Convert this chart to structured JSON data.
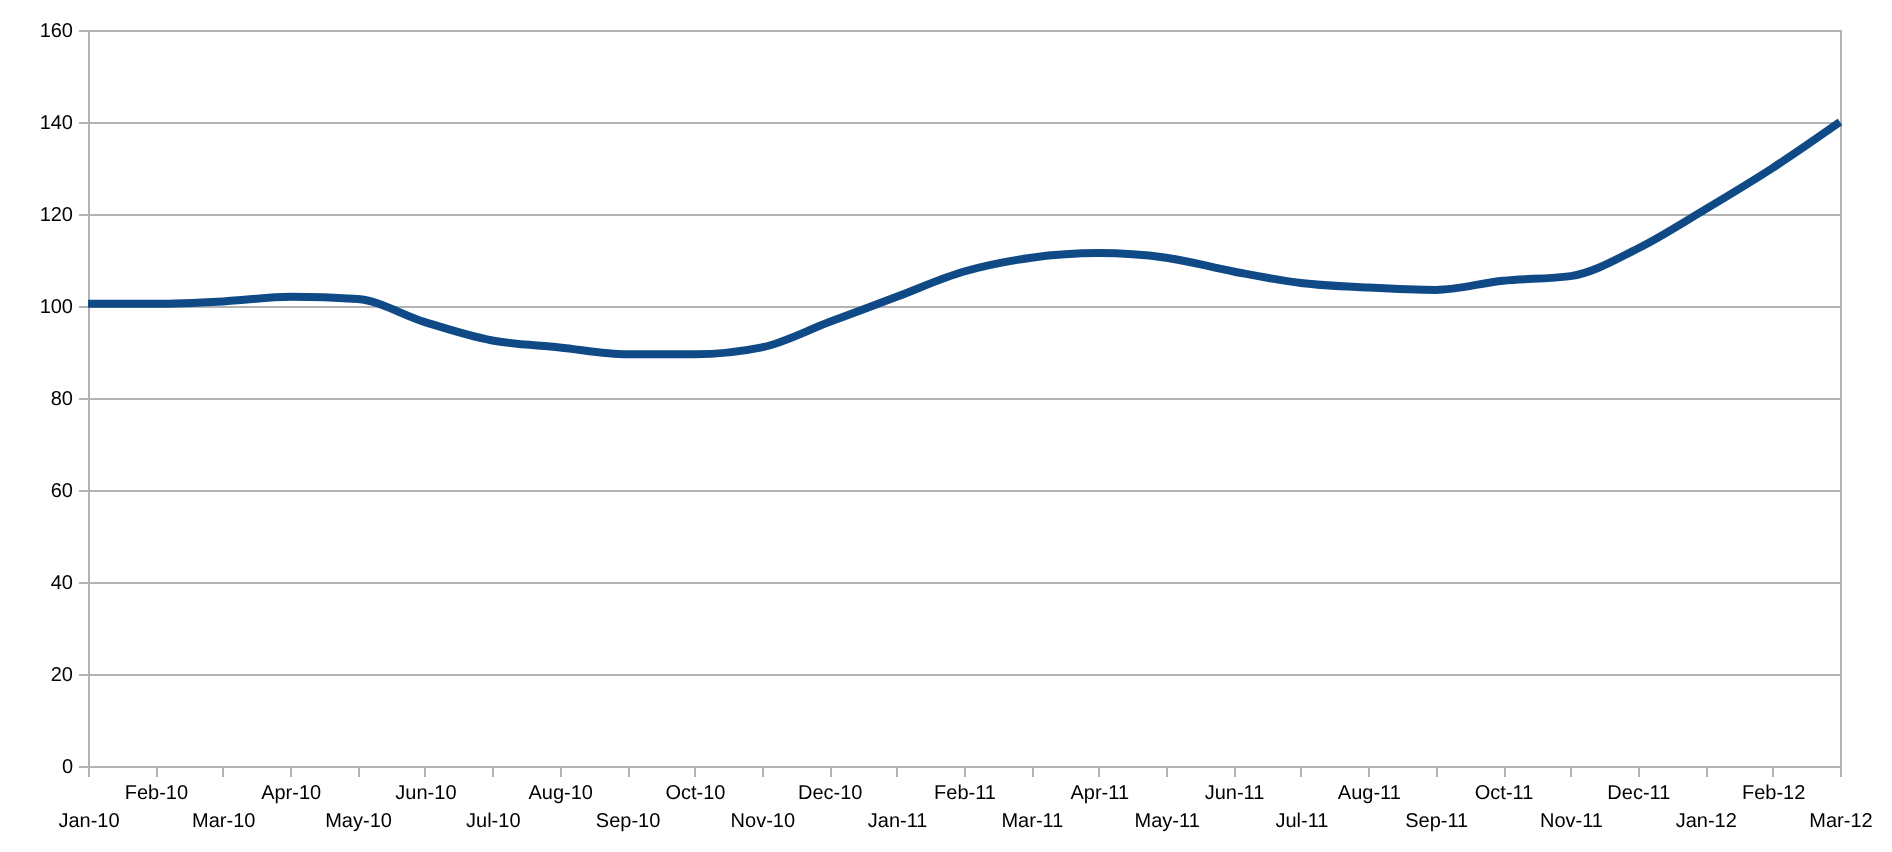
{
  "chart_data": {
    "type": "line",
    "categories": [
      "Jan-10",
      "Feb-10",
      "Mar-10",
      "Apr-10",
      "May-10",
      "Jun-10",
      "Jul-10",
      "Aug-10",
      "Sep-10",
      "Oct-10",
      "Nov-10",
      "Dec-10",
      "Jan-11",
      "Feb-11",
      "Mar-11",
      "Apr-11",
      "May-11",
      "Jun-11",
      "Jul-11",
      "Aug-11",
      "Sep-11",
      "Oct-11",
      "Nov-11",
      "Dec-11",
      "Jan-12",
      "Feb-12",
      "Mar-12"
    ],
    "series": [
      {
        "color": "#0f4a87",
        "values": [
          100.5,
          100.5,
          101,
          102,
          101.5,
          96.5,
          92.5,
          91,
          89.5,
          89.5,
          91,
          96.5,
          102,
          107.5,
          110.5,
          111.5,
          110.5,
          107.5,
          105,
          104,
          103.5,
          105.5,
          106.5,
          112.5,
          121,
          130,
          140
        ]
      }
    ],
    "ylim": [
      0,
      160
    ],
    "yticks": [
      0,
      20,
      40,
      60,
      80,
      100,
      120,
      140,
      160
    ],
    "grid": "y",
    "marker": "none",
    "line_style": "solid"
  }
}
